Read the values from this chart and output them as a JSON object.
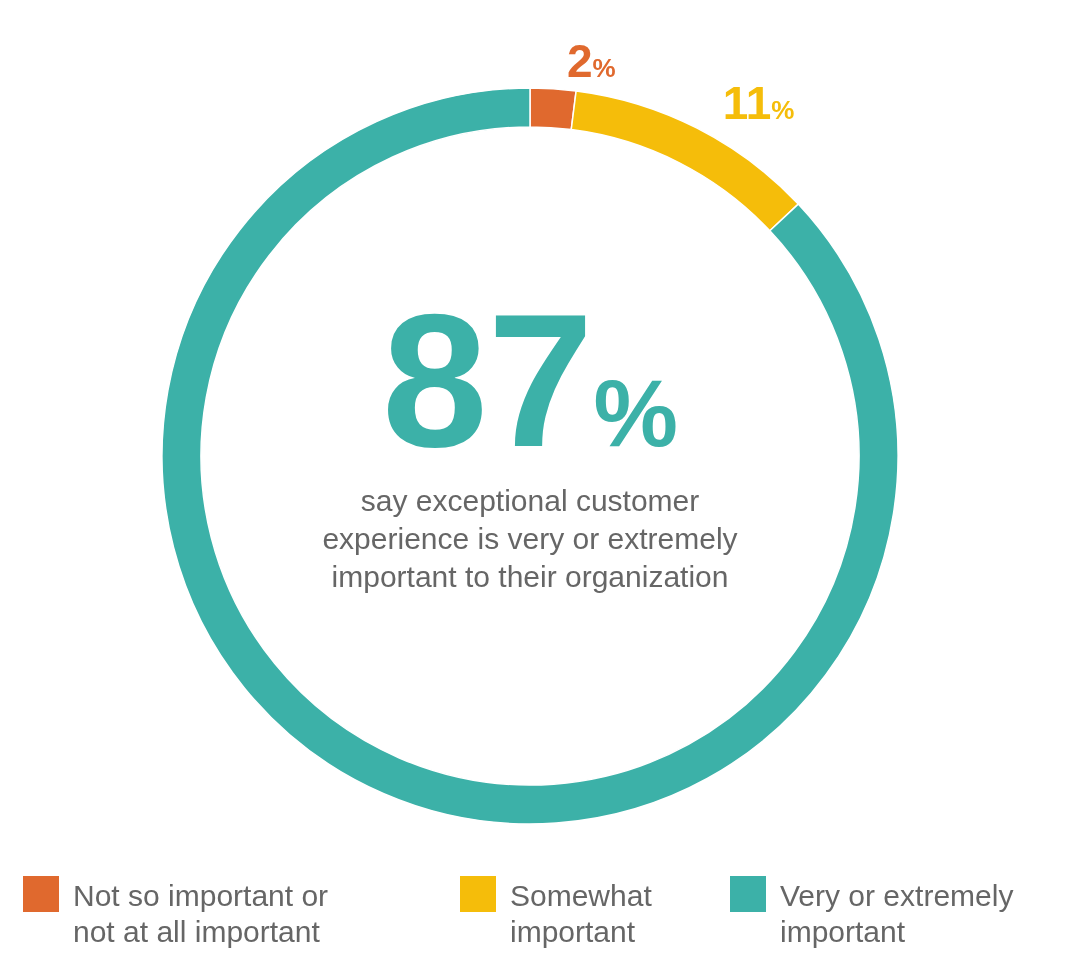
{
  "chart_data": {
    "type": "donut",
    "categories": [
      "Not so important or not at all important",
      "Somewhat important",
      "Very or extremely important"
    ],
    "values": [
      2,
      11,
      87
    ],
    "colors": [
      "#e0692e",
      "#f5bd0a",
      "#3cb1a8"
    ],
    "value_labels": [
      "2%",
      "11%",
      "87%"
    ],
    "annotations": [
      "say exceptional customer experience is very or extremely important to their organization"
    ],
    "legend": "bottom"
  }
}
